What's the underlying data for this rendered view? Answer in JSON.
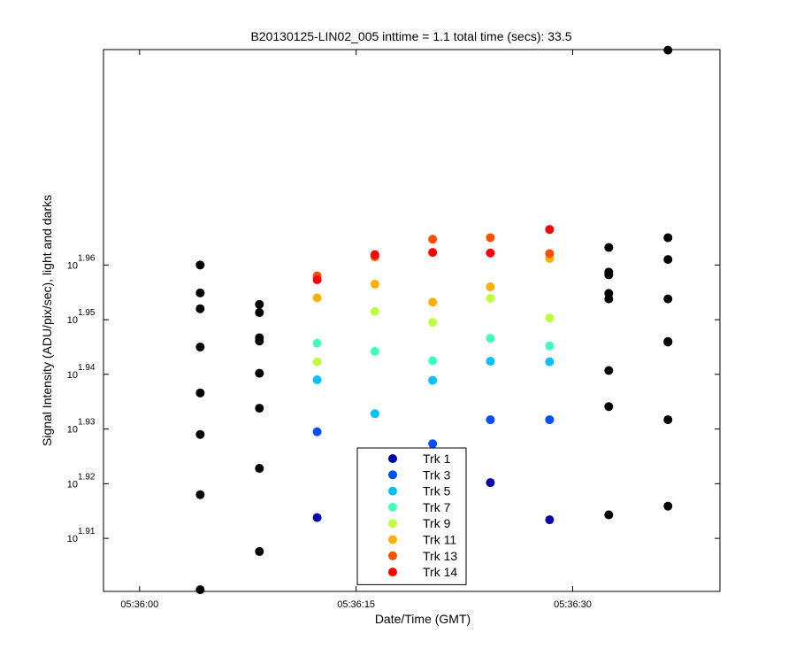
{
  "chart_data": {
    "type": "scatter",
    "title": "B20130125-LIN02_005 inttime = 1.1 total time (secs): 33.5",
    "xlabel": "Date/Time (GMT)",
    "ylabel": "Signal Intensity (ADU/pix/sec), light and darks",
    "x_scale": "time",
    "y_scale": "log",
    "xlim": [
      "05:35:57.5",
      "05:36:40.2"
    ],
    "ylim_exponent": [
      1.9003,
      1.9994
    ],
    "x_ticks": [
      "05:36:00",
      "05:36:15",
      "05:36:30"
    ],
    "y_ticks": [
      {
        "base": "10",
        "exp": "1.91"
      },
      {
        "base": "10",
        "exp": "1.92"
      },
      {
        "base": "10",
        "exp": "1.93"
      },
      {
        "base": "10",
        "exp": "1.94"
      },
      {
        "base": "10",
        "exp": "1.95"
      },
      {
        "base": "10",
        "exp": "1.96"
      }
    ],
    "legend_placement": "bottom-center",
    "grid": false,
    "colors": {
      "darks": "#000000",
      "Trk 1": "#0000aa",
      "Trk 3": "#0050ff",
      "Trk 5": "#00c0ff",
      "Trk 7": "#40ffc0",
      "Trk 9": "#c0ff40",
      "Trk 11": "#ffb000",
      "Trk 13": "#ff5000",
      "Trk 14": "#ff0000"
    },
    "series": [
      {
        "name": "Trk 1",
        "x": [
          "05:36:12.3",
          "05:36:24.3",
          "05:36:28.4"
        ],
        "y_exponent": [
          1.9138,
          1.9202,
          1.9134
        ]
      },
      {
        "name": "Trk 3",
        "x": [
          "05:36:12.3",
          "05:36:16.3",
          "05:36:20.3",
          "05:36:24.3",
          "05:36:28.4"
        ],
        "y_exponent": [
          1.9295,
          1.9243,
          1.9273,
          1.9317,
          1.9317
        ]
      },
      {
        "name": "Trk 5",
        "x": [
          "05:36:12.3",
          "05:36:16.3",
          "05:36:20.3",
          "05:36:24.3",
          "05:36:28.4"
        ],
        "y_exponent": [
          1.939,
          1.9328,
          1.9389,
          1.9424,
          1.9423
        ]
      },
      {
        "name": "Trk 7",
        "x": [
          "05:36:12.3",
          "05:36:16.3",
          "05:36:20.3",
          "05:36:24.3",
          "05:36:28.4"
        ],
        "y_exponent": [
          1.9457,
          1.9442,
          1.9425,
          1.9466,
          1.9452
        ]
      },
      {
        "name": "Trk 9",
        "x": [
          "05:36:12.3",
          "05:36:16.3",
          "05:36:20.3",
          "05:36:24.3",
          "05:36:28.4"
        ],
        "y_exponent": [
          1.9423,
          1.9515,
          1.9495,
          1.9539,
          1.9503
        ]
      },
      {
        "name": "Trk 11",
        "x": [
          "05:36:12.3",
          "05:36:16.3",
          "05:36:20.3",
          "05:36:24.3",
          "05:36:28.4"
        ],
        "y_exponent": [
          1.954,
          1.9565,
          1.9532,
          1.956,
          1.9612
        ]
      },
      {
        "name": "Trk 13",
        "x": [
          "05:36:12.3",
          "05:36:16.3",
          "05:36:20.3",
          "05:36:24.3",
          "05:36:28.4"
        ],
        "y_exponent": [
          1.958,
          1.9615,
          1.9647,
          1.965,
          1.9621
        ]
      },
      {
        "name": "Trk 14",
        "x": [
          "05:36:12.3",
          "05:36:16.3",
          "05:36:20.3",
          "05:36:24.3",
          "05:36:28.4"
        ],
        "y_exponent": [
          1.9573,
          1.9619,
          1.9623,
          1.9622,
          1.9665
        ]
      },
      {
        "name": "",
        "x": [
          "05:36:04.2",
          "05:36:04.2",
          "05:36:04.2",
          "05:36:04.2",
          "05:36:04.2",
          "05:36:04.2",
          "05:36:04.2",
          "05:36:04.2",
          "05:36:08.3",
          "05:36:08.3",
          "05:36:08.3",
          "05:36:08.3",
          "05:36:08.3",
          "05:36:08.3",
          "05:36:08.3",
          "05:36:08.3",
          "05:36:32.5",
          "05:36:32.5",
          "05:36:32.5",
          "05:36:32.5",
          "05:36:32.5",
          "05:36:32.5",
          "05:36:32.5",
          "05:36:32.5",
          "05:36:36.6",
          "05:36:36.6",
          "05:36:36.6",
          "05:36:36.6",
          "05:36:36.6",
          "05:36:36.6",
          "05:36:36.6",
          "05:36:36.6"
        ],
        "y_exponent": [
          1.96,
          1.9549,
          1.952,
          1.945,
          1.9366,
          1.929,
          1.918,
          1.9006,
          1.9528,
          1.9513,
          1.9467,
          1.9461,
          1.9402,
          1.9338,
          1.9228,
          1.9076,
          1.9632,
          1.9587,
          1.9582,
          1.9548,
          1.9538,
          1.9407,
          1.9341,
          1.9143,
          1.9993,
          1.965,
          1.961,
          1.9538,
          1.946,
          1.9459,
          1.9317,
          1.9159
        ]
      }
    ]
  }
}
